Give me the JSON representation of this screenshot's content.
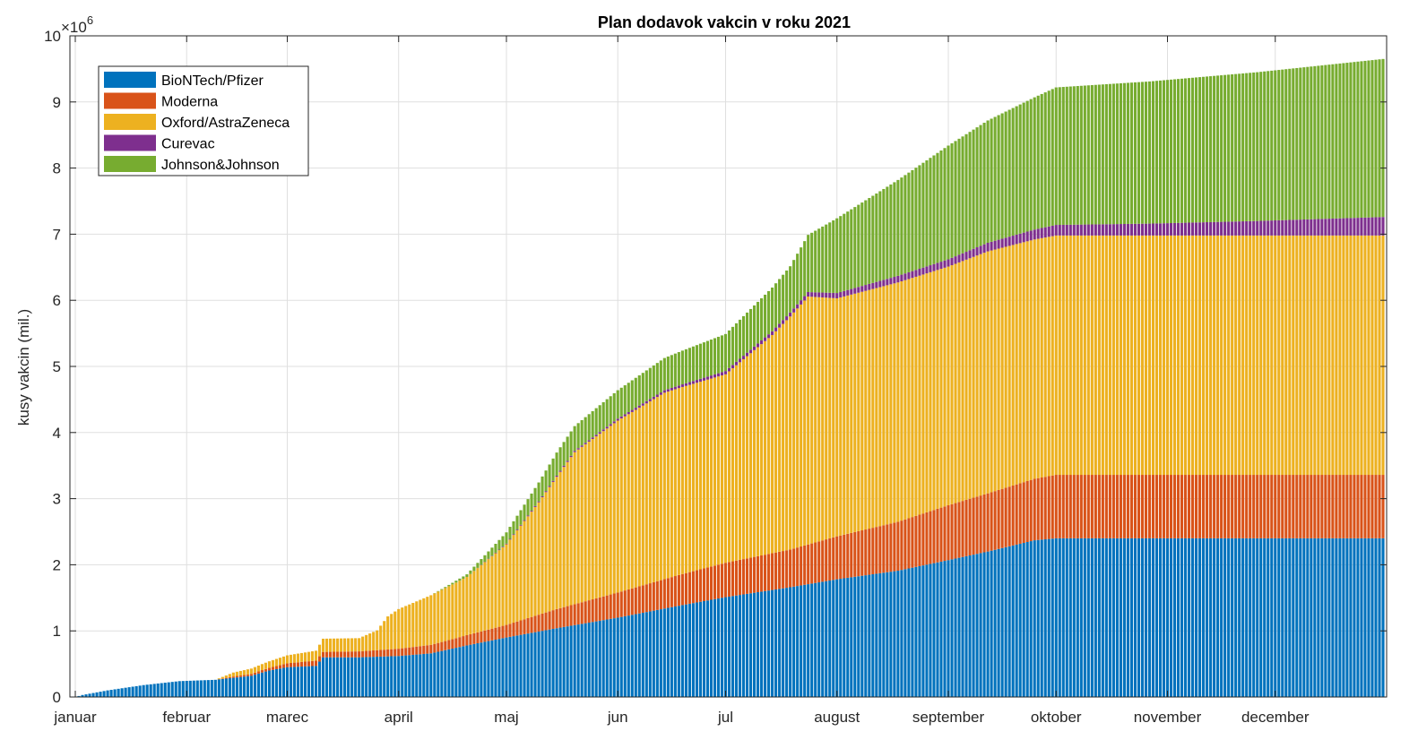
{
  "chart_data": {
    "type": "area",
    "title": "Plan dodavok vakcin v roku 2021",
    "xlabel": "",
    "ylabel": "kusy vakcin (mil.)",
    "y_exponent_label": "×10",
    "y_exponent_power": "6",
    "ylim": [
      0,
      10000000
    ],
    "yticks": [
      0,
      1000000,
      2000000,
      3000000,
      4000000,
      5000000,
      6000000,
      7000000,
      8000000,
      9000000,
      10000000
    ],
    "ytick_labels": [
      "0",
      "1",
      "2",
      "3",
      "4",
      "5",
      "6",
      "7",
      "8",
      "9",
      "10"
    ],
    "xlim": [
      1,
      365
    ],
    "x_units": "day of year 2021",
    "month_ticks": [
      {
        "day": 1,
        "label": "januar"
      },
      {
        "day": 32,
        "label": "februar"
      },
      {
        "day": 60,
        "label": "marec"
      },
      {
        "day": 91,
        "label": "april"
      },
      {
        "day": 121,
        "label": "maj"
      },
      {
        "day": 152,
        "label": "jun"
      },
      {
        "day": 182,
        "label": "jul"
      },
      {
        "day": 213,
        "label": "august"
      },
      {
        "day": 244,
        "label": "september"
      },
      {
        "day": 274,
        "label": "oktober"
      },
      {
        "day": 305,
        "label": "november"
      },
      {
        "day": 335,
        "label": "december"
      }
    ],
    "grid": true,
    "legend_position": "top-left",
    "stacked": true,
    "series": [
      {
        "name": "BioNTech/Pfizer",
        "color": "#0072BD",
        "points": [
          [
            1,
            0
          ],
          [
            3,
            30000
          ],
          [
            10,
            100000
          ],
          [
            20,
            180000
          ],
          [
            30,
            240000
          ],
          [
            40,
            260000
          ],
          [
            45,
            290000
          ],
          [
            50,
            320000
          ],
          [
            53,
            370000
          ],
          [
            55,
            400000
          ],
          [
            60,
            450000
          ],
          [
            68,
            470000
          ],
          [
            70,
            600000
          ],
          [
            80,
            600000
          ],
          [
            91,
            620000
          ],
          [
            100,
            660000
          ],
          [
            110,
            780000
          ],
          [
            121,
            900000
          ],
          [
            135,
            1040000
          ],
          [
            152,
            1200000
          ],
          [
            170,
            1390000
          ],
          [
            182,
            1510000
          ],
          [
            200,
            1660000
          ],
          [
            213,
            1780000
          ],
          [
            230,
            1910000
          ],
          [
            244,
            2070000
          ],
          [
            255,
            2200000
          ],
          [
            268,
            2370000
          ],
          [
            274,
            2400000
          ],
          [
            365,
            2400000
          ]
        ]
      },
      {
        "name": "Moderna",
        "color": "#D95319",
        "points": [
          [
            1,
            0
          ],
          [
            40,
            0
          ],
          [
            45,
            20000
          ],
          [
            55,
            40000
          ],
          [
            60,
            60000
          ],
          [
            68,
            80000
          ],
          [
            80,
            90000
          ],
          [
            91,
            110000
          ],
          [
            105,
            140000
          ],
          [
            121,
            190000
          ],
          [
            135,
            290000
          ],
          [
            152,
            380000
          ],
          [
            170,
            470000
          ],
          [
            182,
            520000
          ],
          [
            200,
            570000
          ],
          [
            213,
            650000
          ],
          [
            230,
            740000
          ],
          [
            244,
            830000
          ],
          [
            255,
            880000
          ],
          [
            268,
            930000
          ],
          [
            274,
            960000
          ],
          [
            365,
            960000
          ]
        ]
      },
      {
        "name": "Oxford/AstraZeneca",
        "color": "#EDB120",
        "points": [
          [
            1,
            0
          ],
          [
            40,
            0
          ],
          [
            45,
            60000
          ],
          [
            55,
            100000
          ],
          [
            60,
            120000
          ],
          [
            68,
            150000
          ],
          [
            70,
            200000
          ],
          [
            80,
            200000
          ],
          [
            85,
            300000
          ],
          [
            88,
            500000
          ],
          [
            91,
            600000
          ],
          [
            100,
            750000
          ],
          [
            110,
            880000
          ],
          [
            121,
            1220000
          ],
          [
            130,
            1700000
          ],
          [
            140,
            2300000
          ],
          [
            152,
            2600000
          ],
          [
            165,
            2820000
          ],
          [
            182,
            2850000
          ],
          [
            195,
            3300000
          ],
          [
            205,
            3750000
          ],
          [
            213,
            3600000
          ],
          [
            230,
            3620000
          ],
          [
            244,
            3610000
          ],
          [
            255,
            3660000
          ],
          [
            268,
            3620000
          ],
          [
            274,
            3620000
          ],
          [
            365,
            3620000
          ]
        ]
      },
      {
        "name": "Curevac",
        "color": "#7E2F8E",
        "points": [
          [
            1,
            0
          ],
          [
            110,
            0
          ],
          [
            121,
            10000
          ],
          [
            140,
            20000
          ],
          [
            152,
            30000
          ],
          [
            170,
            40000
          ],
          [
            182,
            50000
          ],
          [
            200,
            60000
          ],
          [
            213,
            80000
          ],
          [
            230,
            100000
          ],
          [
            244,
            110000
          ],
          [
            255,
            130000
          ],
          [
            268,
            150000
          ],
          [
            274,
            160000
          ],
          [
            300,
            180000
          ],
          [
            330,
            220000
          ],
          [
            365,
            280000
          ]
        ]
      },
      {
        "name": "Johnson&Johnson",
        "color": "#77AC30",
        "points": [
          [
            1,
            0
          ],
          [
            100,
            0
          ],
          [
            110,
            40000
          ],
          [
            121,
            170000
          ],
          [
            135,
            350000
          ],
          [
            152,
            430000
          ],
          [
            170,
            510000
          ],
          [
            182,
            560000
          ],
          [
            200,
            700000
          ],
          [
            213,
            1130000
          ],
          [
            230,
            1450000
          ],
          [
            244,
            1720000
          ],
          [
            255,
            1850000
          ],
          [
            268,
            2000000
          ],
          [
            274,
            2080000
          ],
          [
            300,
            2150000
          ],
          [
            330,
            2250000
          ],
          [
            365,
            2390000
          ]
        ]
      }
    ]
  }
}
